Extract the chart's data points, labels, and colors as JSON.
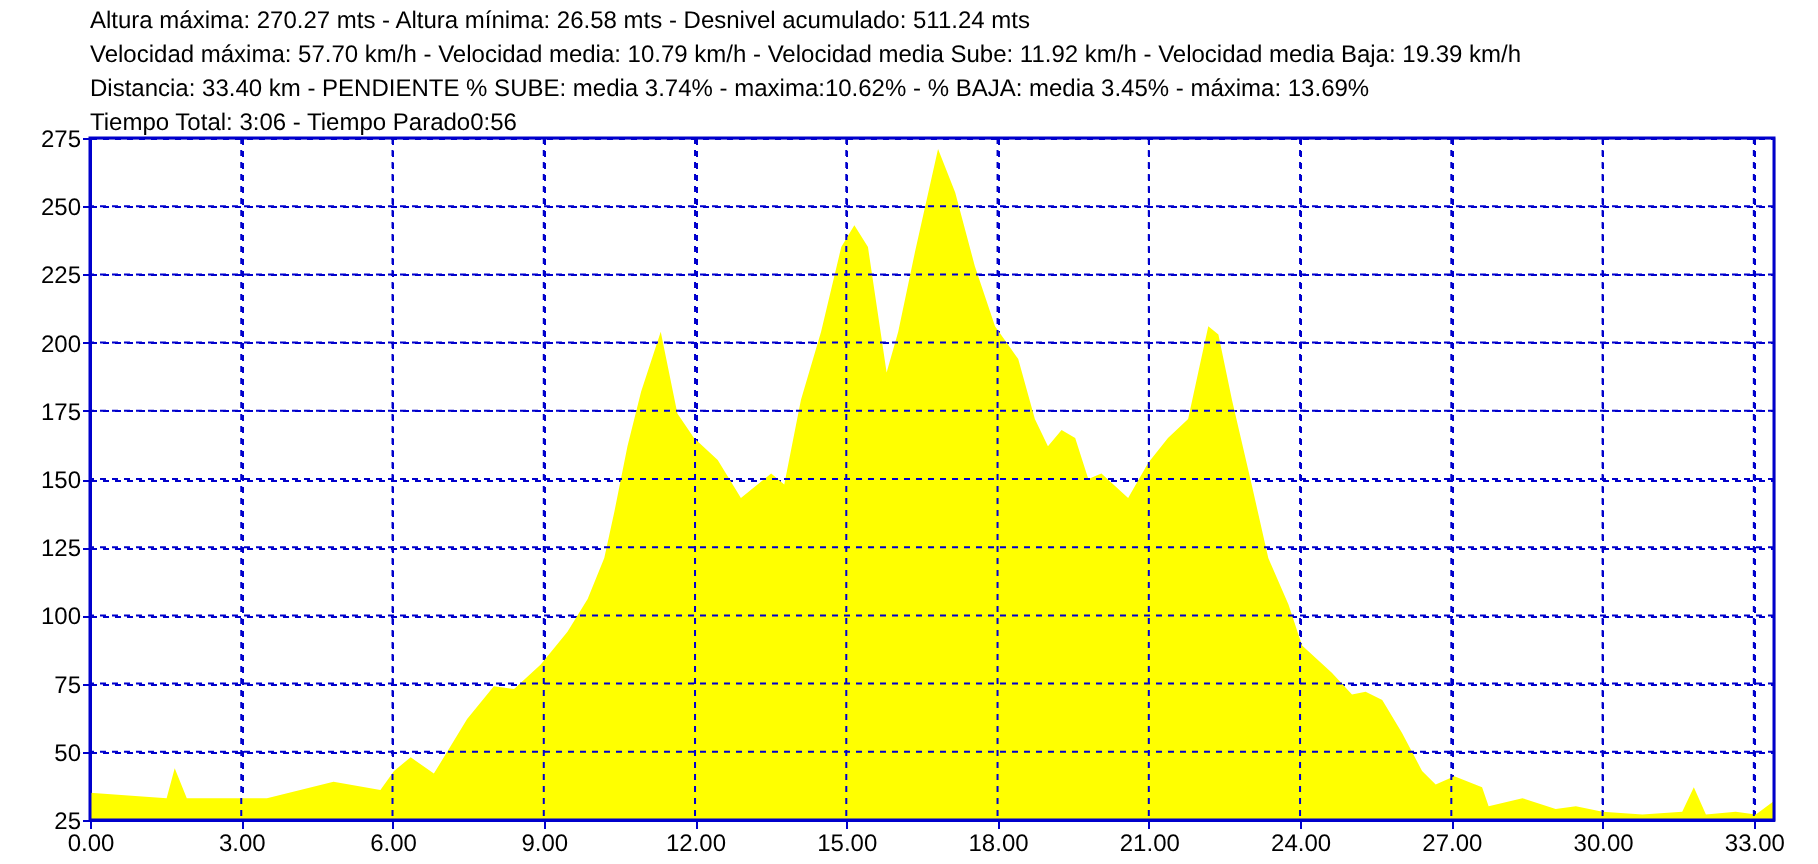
{
  "chart_data": {
    "type": "area",
    "annotations": [
      "Altura máxima: 270.27 mts - Altura mínima: 26.58 mts - Desnivel acumulado: 511.24 mts",
      "Velocidad máxima: 57.70 km/h - Velocidad media: 10.79 km/h - Velocidad media Sube: 11.92 km/h - Velocidad media Baja: 19.39 km/h",
      "Distancia: 33.40 km - PENDIENTE  % SUBE: media 3.74% - maxima:10.62%  - % BAJA: media 3.45% - máxima: 13.69%",
      "Tiempo Total: 3:06 - Tiempo Parado0:56"
    ],
    "x": [
      0,
      1.52,
      1.68,
      1.92,
      3.51,
      4.83,
      5.76,
      6.03,
      6.36,
      6.82,
      7.48,
      8.01,
      8.41,
      8.94,
      9.47,
      9.87,
      10.2,
      10.4,
      10.66,
      10.93,
      11.32,
      11.65,
      11.98,
      12.45,
      12.91,
      13.51,
      13.77,
      14.1,
      14.5,
      14.9,
      15.16,
      15.43,
      15.8,
      16.03,
      16.36,
      16.82,
      17.16,
      17.55,
      17.95,
      18.41,
      18.74,
      19.0,
      19.27,
      19.54,
      19.8,
      20.06,
      20.59,
      20.99,
      21.38,
      21.78,
      21.98,
      22.18,
      22.38,
      22.65,
      23.04,
      23.37,
      23.77,
      24.04,
      24.63,
      25.03,
      25.3,
      25.63,
      26.02,
      26.42,
      26.69,
      27.06,
      27.61,
      27.74,
      28.41,
      29.07,
      29.47,
      30.0,
      30.79,
      31.58,
      31.81,
      32.05,
      32.64,
      33.04,
      33.4
    ],
    "series": [
      {
        "color": "#ffff00",
        "values": [
          35,
          33,
          44,
          33,
          33,
          39,
          36,
          43,
          48,
          42,
          62,
          74,
          73,
          82,
          94,
          106,
          121,
          138,
          162,
          182,
          204,
          174,
          165,
          157,
          143,
          152,
          148,
          179,
          204,
          235,
          243,
          235,
          189,
          204,
          233,
          271,
          255,
          228,
          206,
          194,
          172,
          162,
          168,
          165,
          150,
          152,
          143,
          156,
          165,
          172,
          189,
          206,
          203,
          179,
          148,
          121,
          104,
          89,
          79,
          71,
          72,
          69,
          57,
          43,
          38,
          41,
          37,
          30,
          33,
          29,
          30,
          28,
          27,
          28,
          37,
          27,
          28,
          27,
          32
        ]
      }
    ],
    "xlim": [
      0,
      33.4
    ],
    "ylim": [
      25,
      275
    ],
    "xticks": [
      {
        "value": 0,
        "label": "0.00"
      },
      {
        "value": 3,
        "label": "3.00"
      },
      {
        "value": 6,
        "label": "6.00"
      },
      {
        "value": 9,
        "label": "9.00"
      },
      {
        "value": 12,
        "label": "12.00"
      },
      {
        "value": 15,
        "label": "15.00"
      },
      {
        "value": 18,
        "label": "18.00"
      },
      {
        "value": 21,
        "label": "21.00"
      },
      {
        "value": 24,
        "label": "24.00"
      },
      {
        "value": 27,
        "label": "27.00"
      },
      {
        "value": 30,
        "label": "30.00"
      },
      {
        "value": 33,
        "label": "33.00"
      }
    ],
    "yticks": [
      25,
      50,
      75,
      100,
      125,
      150,
      175,
      200,
      225,
      250,
      275
    ],
    "grid": true
  }
}
